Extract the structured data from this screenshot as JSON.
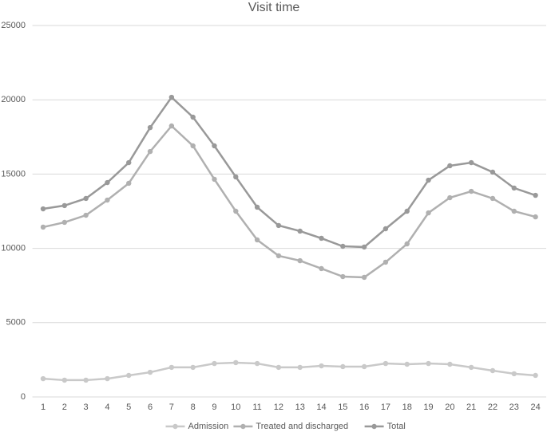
{
  "chart_data": {
    "type": "line",
    "title": "Visit time",
    "categories": [
      "1",
      "2",
      "3",
      "4",
      "5",
      "6",
      "7",
      "8",
      "9",
      "10",
      "11",
      "12",
      "13",
      "14",
      "15",
      "16",
      "17",
      "18",
      "19",
      "20",
      "21",
      "22",
      "23",
      "24"
    ],
    "series": [
      {
        "name": "Admission",
        "color": "#c9c9c9",
        "values": [
          1230,
          1130,
          1130,
          1230,
          1450,
          1660,
          1990,
          1990,
          2250,
          2310,
          2250,
          1990,
          1990,
          2090,
          2040,
          2040,
          2250,
          2200,
          2250,
          2200,
          1990,
          1770,
          1560,
          1450
        ]
      },
      {
        "name": "Treated and discharged",
        "color": "#b0b0b0",
        "values": [
          11430,
          11750,
          12230,
          13250,
          14380,
          16520,
          18240,
          16900,
          14650,
          12500,
          10570,
          9500,
          9170,
          8640,
          8100,
          8050,
          9070,
          10300,
          12390,
          13410,
          13840,
          13360,
          12500,
          12120
        ]
      },
      {
        "name": "Total",
        "color": "#999999",
        "values": [
          12660,
          12880,
          13360,
          14430,
          15770,
          18130,
          20170,
          18830,
          16900,
          14810,
          12770,
          11540,
          11160,
          10680,
          10140,
          10090,
          11320,
          12500,
          14590,
          15560,
          15770,
          15130,
          14060,
          13570
        ]
      }
    ],
    "ylim": [
      0,
      25000
    ],
    "yticks": [
      0,
      5000,
      10000,
      15000,
      20000,
      25000
    ],
    "grid": true,
    "legend": "bottom"
  }
}
